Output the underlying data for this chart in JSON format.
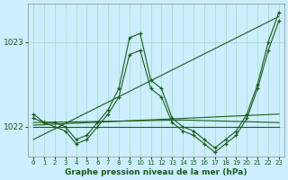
{
  "background_color": "#cceeff",
  "grid_color": "#aaddcc",
  "line_color": "#1a5c1a",
  "title": "Graphe pression niveau de la mer (hPa)",
  "xlim": [
    -0.5,
    23.5
  ],
  "ylim": [
    1021.65,
    1023.45
  ],
  "yticks": [
    1022,
    1023
  ],
  "xticks": [
    0,
    1,
    2,
    3,
    4,
    5,
    6,
    7,
    8,
    9,
    10,
    11,
    12,
    13,
    14,
    15,
    16,
    17,
    18,
    19,
    20,
    21,
    22,
    23
  ],
  "series": [
    {
      "x": [
        0,
        1,
        2,
        3,
        4,
        5,
        6,
        7,
        8,
        9,
        10,
        11,
        12,
        13,
        14,
        15,
        16,
        17,
        18,
        19,
        20,
        21,
        22,
        23
      ],
      "y": [
        1022.15,
        1022.05,
        1022.05,
        1022.0,
        1021.85,
        1021.9,
        1022.05,
        1022.2,
        1022.45,
        1023.05,
        1023.1,
        1022.55,
        1022.45,
        1022.1,
        1022.0,
        1021.95,
        1021.85,
        1021.75,
        1021.85,
        1021.95,
        1022.15,
        1022.5,
        1023.0,
        1023.35
      ],
      "has_marker": true
    },
    {
      "x": [
        0,
        1,
        2,
        3,
        4,
        5,
        6,
        7,
        8,
        9,
        10,
        11,
        12,
        13,
        14,
        15,
        16,
        17,
        18,
        19,
        20,
        21,
        22,
        23
      ],
      "y": [
        1022.1,
        1022.05,
        1022.0,
        1021.95,
        1021.8,
        1021.85,
        1022.0,
        1022.15,
        1022.35,
        1022.85,
        1022.9,
        1022.45,
        1022.35,
        1022.05,
        1021.95,
        1021.9,
        1021.8,
        1021.7,
        1021.8,
        1021.9,
        1022.1,
        1022.45,
        1022.9,
        1023.25
      ],
      "has_marker": true
    },
    {
      "x": [
        0,
        23
      ],
      "y": [
        1021.85,
        1023.3
      ],
      "has_marker": false
    },
    {
      "x": [
        0,
        14,
        23
      ],
      "y": [
        1022.05,
        1022.08,
        1022.05
      ],
      "has_marker": false
    },
    {
      "x": [
        0,
        23
      ],
      "y": [
        1022.0,
        1022.0
      ],
      "has_marker": false
    },
    {
      "x": [
        0,
        23
      ],
      "y": [
        1022.02,
        1022.15
      ],
      "has_marker": false
    }
  ]
}
